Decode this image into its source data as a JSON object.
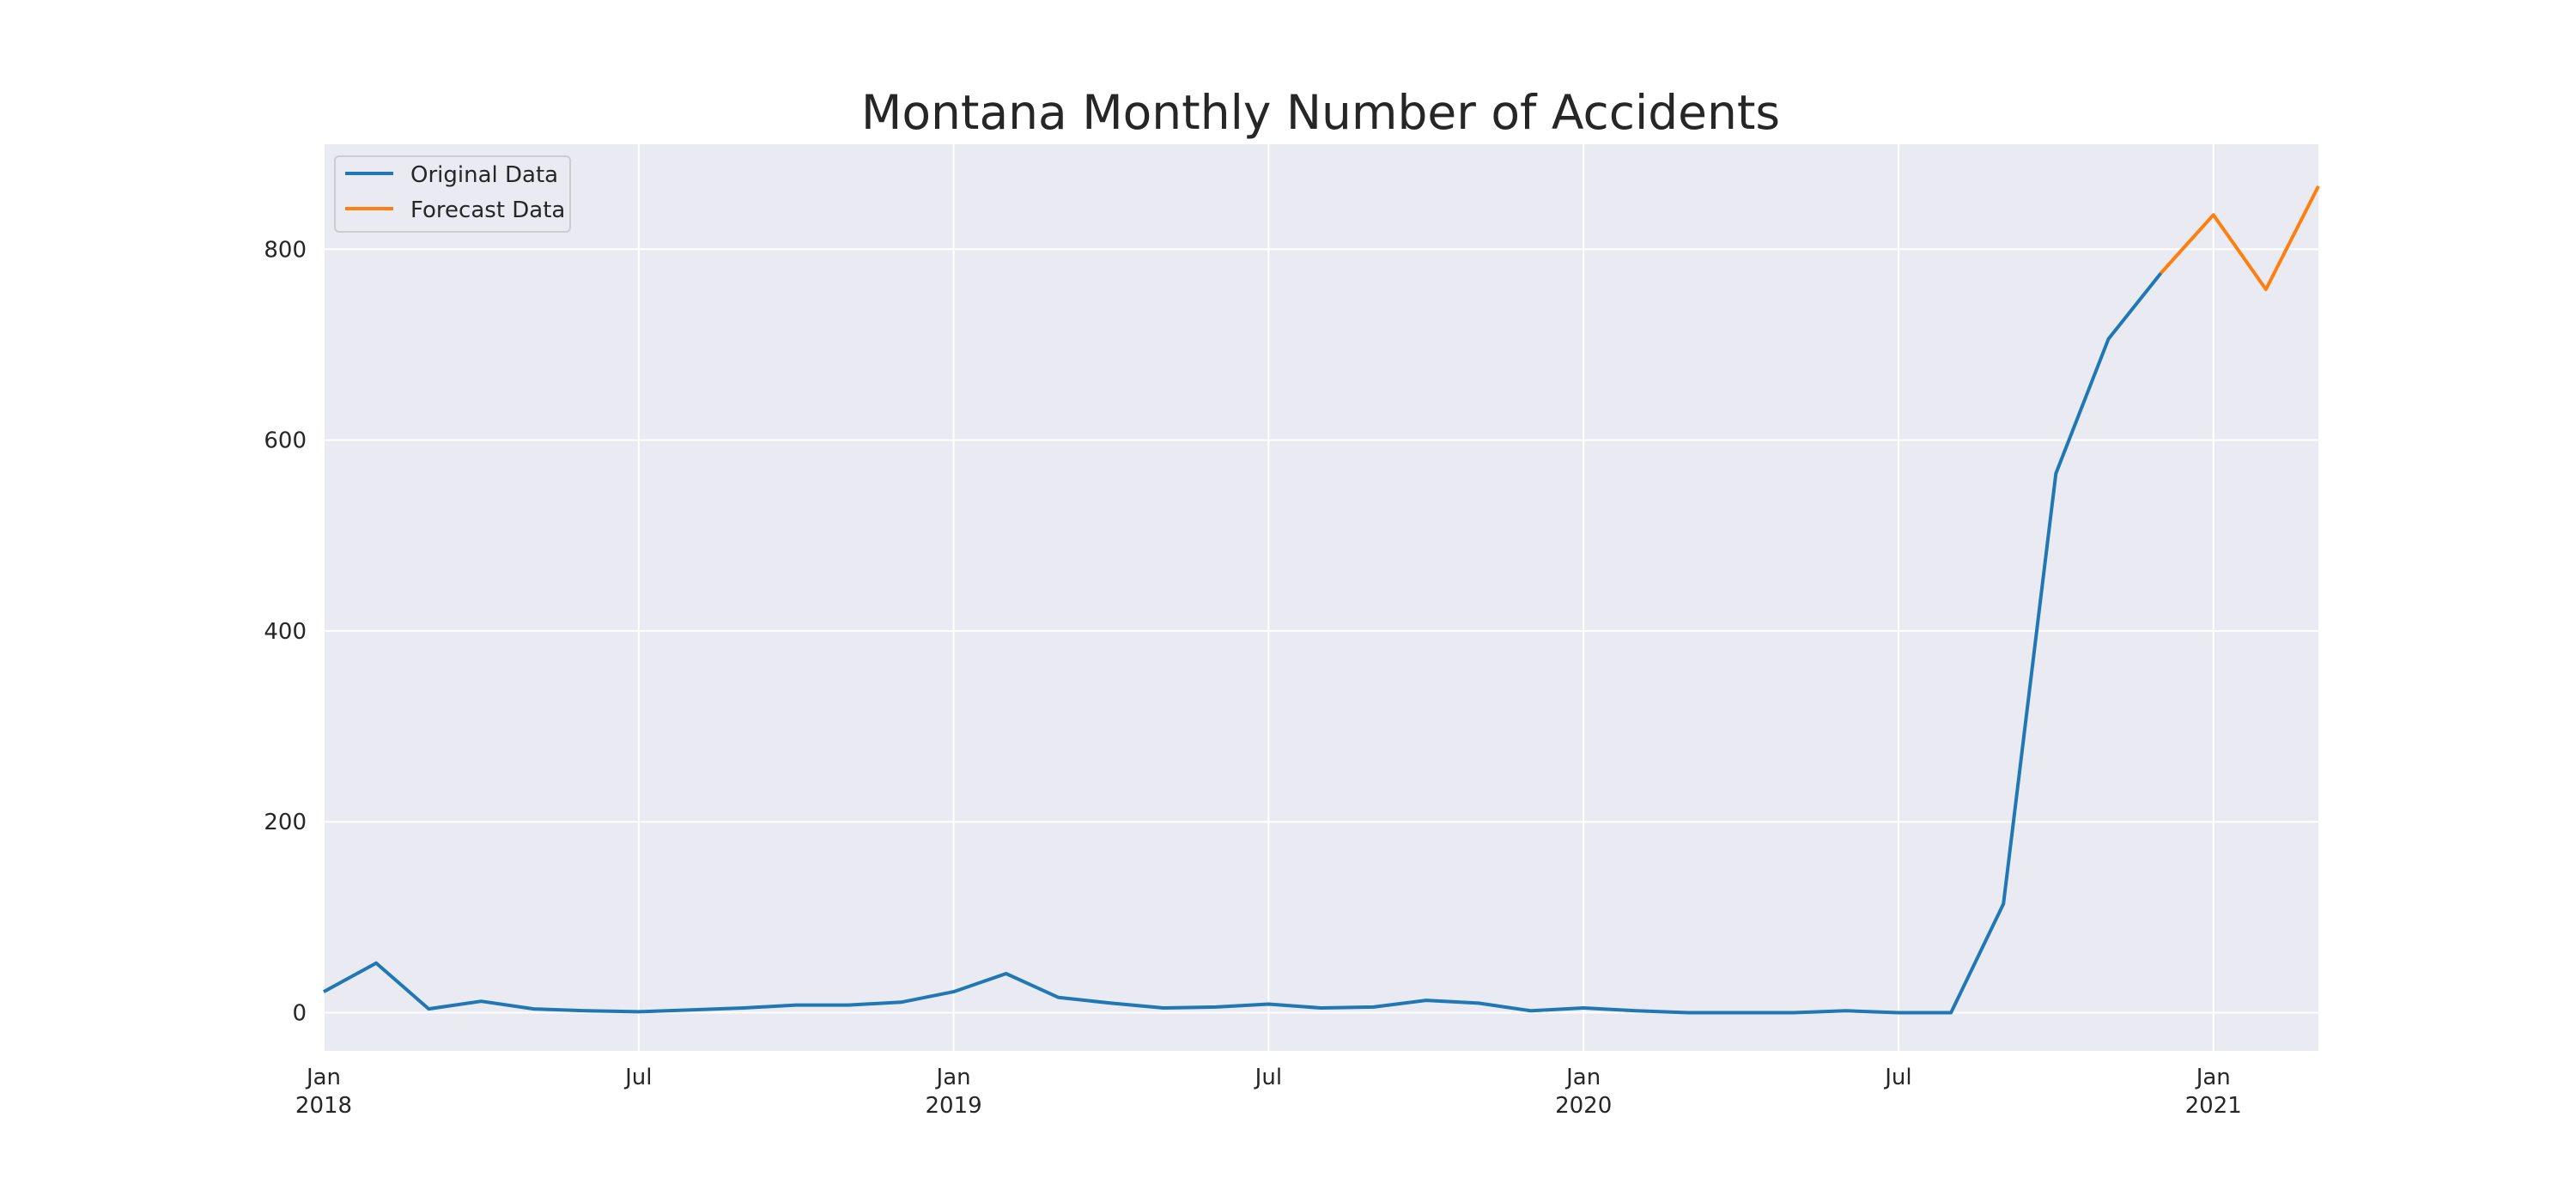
{
  "chart_data": {
    "type": "line",
    "title": "Montana Monthly Number of Accidents",
    "xlabel": "",
    "ylabel": "",
    "x_range": [
      "2018-01",
      "2021-03"
    ],
    "ylim": [
      -40,
      910
    ],
    "grid": true,
    "legend_position": "top-left",
    "y_ticks": [
      0,
      200,
      400,
      600,
      800
    ],
    "x_ticks": [
      {
        "x": "2018-01",
        "line1": "Jan",
        "line2": "2018"
      },
      {
        "x": "2018-07",
        "line1": "Jul",
        "line2": ""
      },
      {
        "x": "2019-01",
        "line1": "Jan",
        "line2": "2019"
      },
      {
        "x": "2019-07",
        "line1": "Jul",
        "line2": ""
      },
      {
        "x": "2020-01",
        "line1": "Jan",
        "line2": "2020"
      },
      {
        "x": "2020-07",
        "line1": "Jul",
        "line2": ""
      },
      {
        "x": "2021-01",
        "line1": "Jan",
        "line2": "2021"
      }
    ],
    "series": [
      {
        "name": "Original Data",
        "color": "#1f77b4",
        "points": [
          {
            "x": "2018-01",
            "y": 22
          },
          {
            "x": "2018-02",
            "y": 52
          },
          {
            "x": "2018-03",
            "y": 4
          },
          {
            "x": "2018-04",
            "y": 12
          },
          {
            "x": "2018-05",
            "y": 4
          },
          {
            "x": "2018-06",
            "y": 2
          },
          {
            "x": "2018-07",
            "y": 1
          },
          {
            "x": "2018-08",
            "y": 3
          },
          {
            "x": "2018-09",
            "y": 5
          },
          {
            "x": "2018-10",
            "y": 8
          },
          {
            "x": "2018-11",
            "y": 8
          },
          {
            "x": "2018-12",
            "y": 11
          },
          {
            "x": "2019-01",
            "y": 22
          },
          {
            "x": "2019-02",
            "y": 41
          },
          {
            "x": "2019-03",
            "y": 16
          },
          {
            "x": "2019-04",
            "y": 10
          },
          {
            "x": "2019-05",
            "y": 5
          },
          {
            "x": "2019-06",
            "y": 6
          },
          {
            "x": "2019-07",
            "y": 9
          },
          {
            "x": "2019-08",
            "y": 5
          },
          {
            "x": "2019-09",
            "y": 6
          },
          {
            "x": "2019-10",
            "y": 13
          },
          {
            "x": "2019-11",
            "y": 10
          },
          {
            "x": "2019-12",
            "y": 2
          },
          {
            "x": "2020-01",
            "y": 5
          },
          {
            "x": "2020-02",
            "y": 2
          },
          {
            "x": "2020-03",
            "y": 0
          },
          {
            "x": "2020-04",
            "y": 0
          },
          {
            "x": "2020-05",
            "y": 0
          },
          {
            "x": "2020-06",
            "y": 2
          },
          {
            "x": "2020-07",
            "y": 0
          },
          {
            "x": "2020-08",
            "y": 0
          },
          {
            "x": "2020-09",
            "y": 114
          },
          {
            "x": "2020-10",
            "y": 565
          },
          {
            "x": "2020-11",
            "y": 706
          },
          {
            "x": "2020-12",
            "y": 775
          }
        ]
      },
      {
        "name": "Forecast Data",
        "color": "#ff7f0e",
        "points": [
          {
            "x": "2020-12",
            "y": 775
          },
          {
            "x": "2021-01",
            "y": 836
          },
          {
            "x": "2021-02",
            "y": 758
          },
          {
            "x": "2021-03",
            "y": 866
          }
        ]
      }
    ]
  },
  "style": {
    "plot_background": "#eaeaf2",
    "grid_color": "#ffffff",
    "text_color": "#262626"
  }
}
